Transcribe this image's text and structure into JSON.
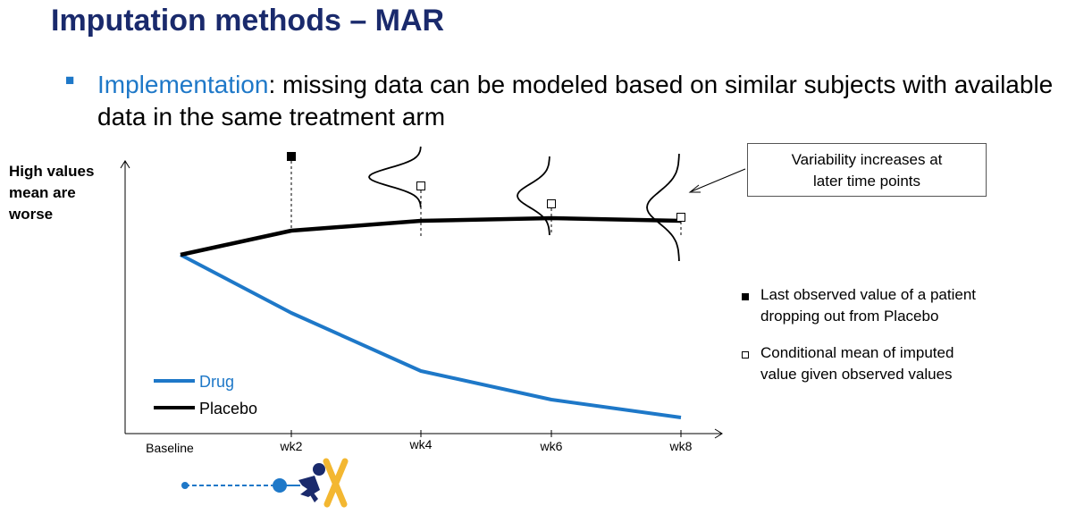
{
  "slide": {
    "title": "Imputation methods – MAR",
    "bullet_highlight": "Implementation",
    "bullet_rest": ": missing data can be modeled based on similar subjects with available data in the same treatment arm"
  },
  "figure": {
    "ylabel_lines": [
      "High values",
      "mean are",
      "worse"
    ],
    "callout_lines": [
      "Variability increases at",
      "later time points"
    ],
    "marker_legend": {
      "filled": [
        "Last observed value of a patient",
        "dropping out from Placebo"
      ],
      "hollow": [
        "Conditional mean of imputed",
        "value given observed values"
      ]
    }
  },
  "chart_data": {
    "type": "line",
    "categories": [
      "Baseline",
      "wk2",
      "wk4",
      "wk6",
      "wk8"
    ],
    "series": [
      {
        "name": "Drug",
        "color": "#1e78c8",
        "values": [
          200,
          135,
          70,
          38,
          18
        ]
      },
      {
        "name": "Placebo",
        "color": "#000000",
        "values": [
          200,
          227,
          238,
          241,
          238
        ]
      }
    ],
    "last_observed": {
      "category": "wk2",
      "value": 310
    },
    "imputed_means": [
      {
        "category": "wk4",
        "value": 277
      },
      {
        "category": "wk6",
        "value": 257
      },
      {
        "category": "wk8",
        "value": 242
      }
    ],
    "ylim": [
      0,
      330
    ],
    "grid": false,
    "legend_position": "bottom-left"
  },
  "colors": {
    "title": "#1a2a6c",
    "accent": "#1e78c8",
    "icon_orange": "#f3b731",
    "icon_navy": "#1a2a6c"
  }
}
